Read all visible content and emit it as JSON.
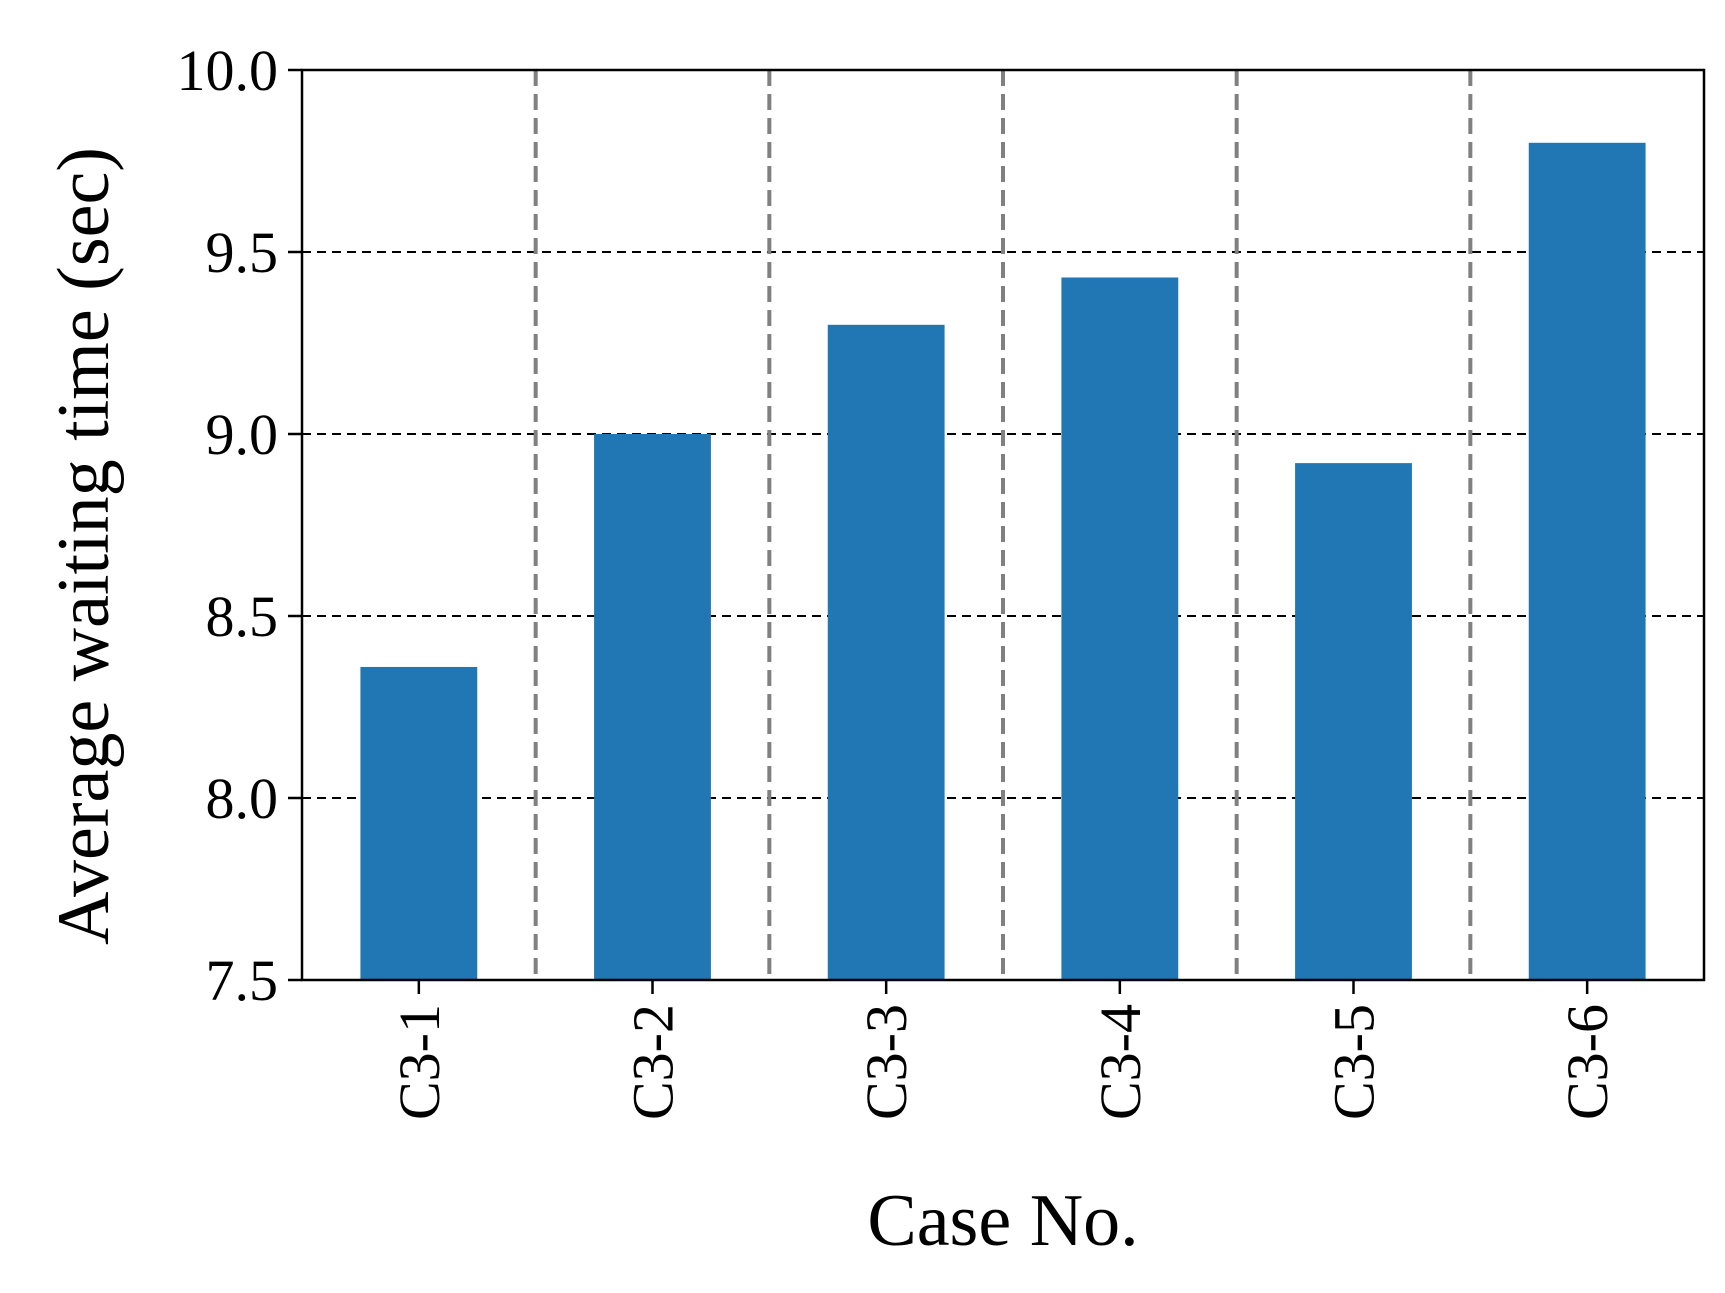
{
  "chart_data": {
    "type": "bar",
    "title": "",
    "xlabel": "Case No.",
    "ylabel": "Average waiting time (sec)",
    "categories": [
      "C3-1",
      "C3-2",
      "C3-3",
      "C3-4",
      "C3-5",
      "C3-6"
    ],
    "values": [
      8.36,
      9.0,
      9.3,
      9.43,
      8.92,
      9.8
    ],
    "ylim": [
      7.5,
      10.0
    ],
    "yticks": [
      "7.5",
      "8.0",
      "8.5",
      "9.0",
      "9.5",
      "10.0"
    ],
    "grid": {
      "horizontal": "black-dashed",
      "vertical_separators": "gray-dashed-between-categories"
    },
    "colors": {
      "bar": "#2077b4",
      "hgrid": "#000000",
      "vgrid": "#808080",
      "axis": "#000000"
    }
  }
}
